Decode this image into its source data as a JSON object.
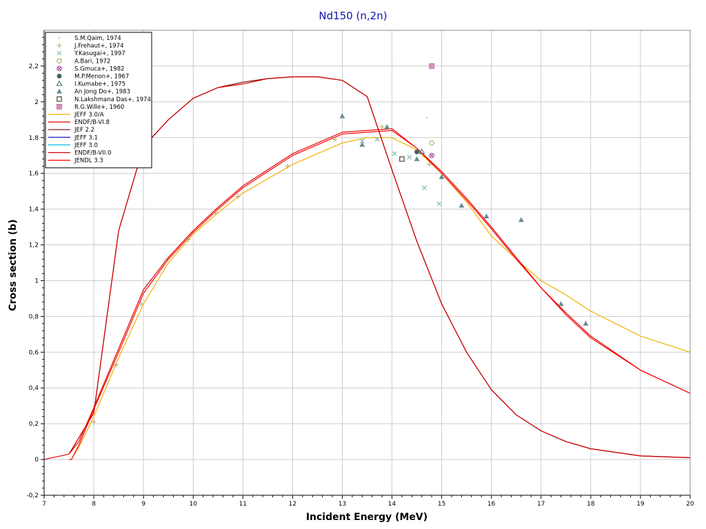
{
  "chart_data": {
    "type": "line",
    "title": "Nd150 (n,2n)",
    "xlabel": "Incident Energy (MeV)",
    "ylabel": "Cross section (b)",
    "xlim": [
      7,
      20
    ],
    "ylim": [
      -0.2,
      2.4
    ],
    "grid": true,
    "legend_position": "top-left",
    "colors": {
      "title": "#1010b0",
      "grid": "#cccccc",
      "axis": "#000000",
      "frame": "#888888"
    },
    "x_ticks": [
      7,
      8,
      9,
      10,
      11,
      12,
      13,
      14,
      15,
      16,
      17,
      18,
      19,
      20
    ],
    "x_tick_labels": [
      "7",
      "8",
      "9",
      "10",
      "11",
      "12",
      "13",
      "14",
      "15",
      "16",
      "17",
      "18",
      "19",
      "20"
    ],
    "y_ticks": [
      -0.2,
      0,
      0.2,
      0.4,
      0.6,
      0.8,
      1,
      1.2,
      1.4,
      1.6,
      1.8,
      2,
      2.2
    ],
    "y_tick_labels": [
      "-0,2",
      "0",
      "0,2",
      "0,4",
      "0,6",
      "0,8",
      "1",
      "1,2",
      "1,4",
      "1,6",
      "1,8",
      "2",
      "2,2"
    ],
    "scatter_series": [
      {
        "name": "S.M.Qaim, 1974",
        "marker": "dot",
        "color": "#e08080",
        "points": [
          [
            14.7,
            1.91
          ]
        ]
      },
      {
        "name": "J.Frehaut+, 1974",
        "marker": "plus",
        "color": "#b8a060",
        "points": [
          [
            8.0,
            0.21
          ],
          [
            8.45,
            0.53
          ],
          [
            8.95,
            0.87
          ],
          [
            9.45,
            1.11
          ],
          [
            9.9,
            1.23
          ],
          [
            10.45,
            1.38
          ],
          [
            10.9,
            1.47
          ],
          [
            11.9,
            1.64
          ],
          [
            12.85,
            1.79
          ],
          [
            13.8,
            1.86
          ],
          [
            14.75,
            1.65
          ]
        ]
      },
      {
        "name": "Y.Kasugai+, 1997",
        "marker": "x",
        "color": "#60b0b0",
        "points": [
          [
            13.4,
            1.78
          ],
          [
            13.7,
            1.79
          ],
          [
            14.05,
            1.71
          ],
          [
            14.35,
            1.69
          ],
          [
            14.65,
            1.52
          ],
          [
            14.95,
            1.43
          ]
        ]
      },
      {
        "name": "A.Bari, 1972",
        "marker": "circle-open",
        "color": "#80b040",
        "points": [
          [
            14.8,
            1.77
          ]
        ]
      },
      {
        "name": "S.Gmuca+, 1982",
        "marker": "circle-x",
        "color": "#a040a0",
        "points": [
          [
            14.8,
            1.7
          ]
        ]
      },
      {
        "name": "M.P.Menon+, 1967",
        "marker": "circle-filled",
        "color": "#406060",
        "points": [
          [
            14.5,
            1.72
          ]
        ]
      },
      {
        "name": "I.Kumabe+, 1975",
        "marker": "triangle-open",
        "color": "#406070",
        "points": [
          [
            14.6,
            1.72
          ]
        ]
      },
      {
        "name": "An Jong Do+, 1983",
        "marker": "triangle-filled",
        "color": "#6a8a96",
        "points": [
          [
            13.0,
            1.92
          ],
          [
            13.4,
            1.76
          ],
          [
            13.9,
            1.86
          ],
          [
            14.5,
            1.68
          ],
          [
            15.0,
            1.58
          ],
          [
            15.4,
            1.42
          ],
          [
            15.9,
            1.36
          ],
          [
            16.6,
            1.34
          ],
          [
            17.4,
            0.87
          ],
          [
            17.9,
            0.76
          ]
        ]
      },
      {
        "name": "N.Lakshmana Das+, 1974",
        "marker": "square-open",
        "color": "#504030",
        "points": [
          [
            14.2,
            1.68
          ]
        ]
      },
      {
        "name": "R.G.Wille+, 1960",
        "marker": "square-x",
        "color": "#c060a0",
        "points": [
          [
            14.8,
            2.2
          ]
        ]
      }
    ],
    "line_series": [
      {
        "name": "JEFF 3.0/A",
        "color": "#f0b000",
        "x": [
          7.5,
          7.55,
          7.7,
          8.0,
          8.5,
          9.0,
          9.5,
          10.0,
          10.5,
          11.0,
          11.5,
          12.0,
          12.5,
          13.0,
          13.5,
          14.0,
          14.5,
          15.0,
          15.5,
          16.0,
          16.5,
          17.0,
          17.5,
          18.0,
          19.0,
          20.0
        ],
        "y": [
          0.0,
          0.0,
          0.07,
          0.24,
          0.57,
          0.87,
          1.1,
          1.26,
          1.38,
          1.49,
          1.57,
          1.65,
          1.71,
          1.77,
          1.8,
          1.8,
          1.73,
          1.6,
          1.44,
          1.25,
          1.12,
          1.0,
          0.92,
          0.83,
          0.69,
          0.6
        ]
      },
      {
        "name": "ENDF/B-VI.8",
        "color": "#e00000",
        "x": [
          7.0,
          7.5,
          7.7,
          8.0,
          8.5,
          9.0,
          9.5,
          10.0,
          10.5,
          11.0,
          11.5,
          12.0,
          12.5,
          13.0,
          13.5,
          14.0,
          14.5,
          15.0,
          15.5,
          16.0,
          16.5,
          17.0,
          17.5,
          18.0,
          19.0,
          20.0
        ],
        "y": [
          0.0,
          0.03,
          0.1,
          0.29,
          0.62,
          0.95,
          1.13,
          1.28,
          1.41,
          1.53,
          1.62,
          1.71,
          1.77,
          1.83,
          1.84,
          1.85,
          1.74,
          1.61,
          1.46,
          1.3,
          1.13,
          0.96,
          0.82,
          0.69,
          0.5,
          0.37
        ]
      },
      {
        "name": "JEF 2.2",
        "color": "#800000",
        "x": [
          7.5,
          8.0,
          8.5,
          9.0,
          9.5,
          10.0,
          10.5,
          11.0,
          11.5,
          12.0,
          12.5,
          13.0,
          13.5,
          14.0,
          14.5,
          15.0,
          15.5,
          16.0,
          16.5,
          17.0,
          17.5,
          18.0,
          19.0,
          20.0
        ],
        "y": [
          0.03,
          0.26,
          1.28,
          1.75,
          1.9,
          2.02,
          2.08,
          2.11,
          2.13,
          2.14,
          2.14,
          2.12,
          2.03,
          1.62,
          1.22,
          0.87,
          0.6,
          0.39,
          0.25,
          0.16,
          0.1,
          0.06,
          0.02,
          0.01
        ]
      },
      {
        "name": "JEFF 3.1",
        "color": "#0000c0",
        "x": [],
        "y": []
      },
      {
        "name": "JEFF 3.0",
        "color": "#00c0e0",
        "x": [],
        "y": []
      },
      {
        "name": "ENDF/B-VII.0",
        "color": "#d00000",
        "x": [
          7.5,
          8.0,
          8.5,
          9.0,
          9.5,
          10.0,
          10.5,
          11.0,
          11.5,
          12.0,
          12.5,
          13.0,
          13.5,
          14.0,
          14.5,
          15.0,
          15.5,
          16.0,
          16.5,
          17.0,
          17.5,
          18.0,
          19.0,
          20.0
        ],
        "y": [
          0.03,
          0.26,
          1.28,
          1.75,
          1.9,
          2.02,
          2.08,
          2.1,
          2.13,
          2.14,
          2.14,
          2.12,
          2.03,
          1.62,
          1.22,
          0.87,
          0.6,
          0.39,
          0.25,
          0.16,
          0.1,
          0.06,
          0.02,
          0.01
        ]
      },
      {
        "name": "JENDL 3.3",
        "color": "#ff0000",
        "x": [
          7.5,
          7.55,
          7.7,
          8.0,
          8.5,
          9.0,
          9.5,
          10.0,
          10.5,
          11.0,
          11.5,
          12.0,
          12.5,
          13.0,
          13.5,
          14.0,
          14.5,
          15.0,
          15.5,
          16.0,
          16.5,
          17.0,
          17.5,
          18.0,
          19.0,
          20.0
        ],
        "y": [
          0.0,
          0.0,
          0.08,
          0.28,
          0.6,
          0.93,
          1.12,
          1.27,
          1.4,
          1.52,
          1.61,
          1.7,
          1.76,
          1.82,
          1.83,
          1.84,
          1.74,
          1.6,
          1.45,
          1.29,
          1.12,
          0.96,
          0.81,
          0.68,
          0.5,
          0.37
        ]
      }
    ]
  }
}
